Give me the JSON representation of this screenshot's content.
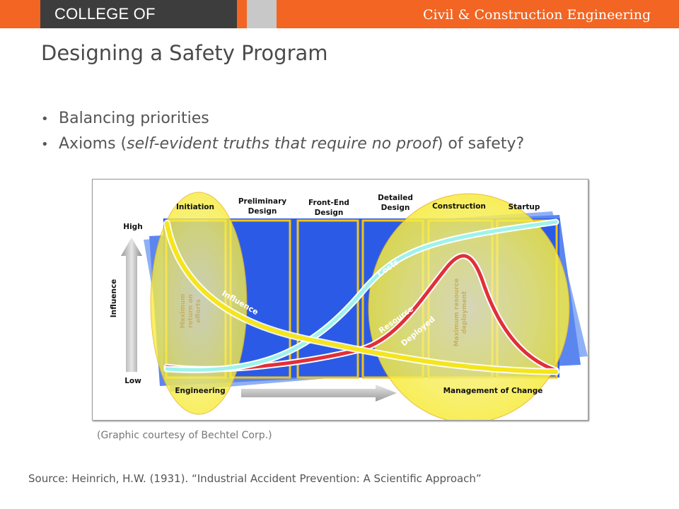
{
  "header": {
    "college": "COLLEGE OF ENGINEERING",
    "department": "Civil & Construction Engineering"
  },
  "slide": {
    "title": "Designing a Safety Program",
    "bullets": [
      {
        "before": "Balancing priorities",
        "italic": "",
        "after": ""
      },
      {
        "before": "Axioms (",
        "italic": "self-evident truths that require no proof",
        "after": ") of safety?"
      }
    ],
    "caption": "(Graphic courtesy of Bechtel Corp.)",
    "source": "Source: Heinrich, H.W. (1931). “Industrial Accident Prevention: A Scientific Approach”"
  },
  "figure": {
    "phases": [
      {
        "line1": "Initiation",
        "line2": ""
      },
      {
        "line1": "Preliminary",
        "line2": "Design"
      },
      {
        "line1": "Front-End",
        "line2": "Design"
      },
      {
        "line1": "Detailed",
        "line2": "Design"
      },
      {
        "line1": "Construction",
        "line2": ""
      },
      {
        "line1": "Startup",
        "line2": ""
      }
    ],
    "axis": {
      "label": "Influence",
      "high": "High",
      "low": "Low"
    },
    "labels": {
      "engineering": "Engineering",
      "management": "Management of Change",
      "max_return": [
        "Maximum",
        "return on",
        "efforts"
      ],
      "max_resource": [
        "Maximum resource",
        "deployment"
      ],
      "influence_curve": "Influence",
      "costs_curve": "Costs",
      "resource_curve": "Resource",
      "deployed_curve": "Deployed"
    },
    "colors": {
      "panel_blue": "#2b5be6",
      "ellipse_yellow": "#f7ef3e",
      "influence_curve": "#f5e51a",
      "costs_curve": "#9ff2ec",
      "resource_curve": "#e0303a",
      "phase_border": "#f0c419"
    }
  }
}
